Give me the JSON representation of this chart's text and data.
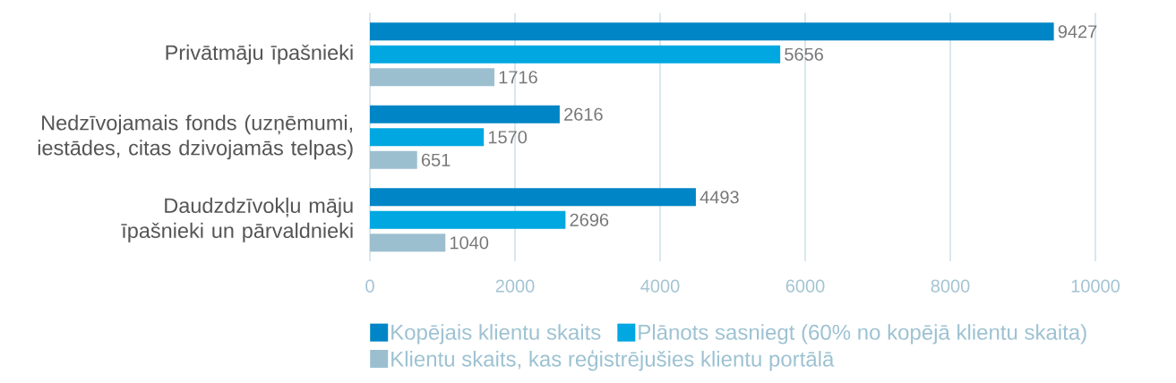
{
  "chart_data": {
    "type": "bar",
    "orientation": "horizontal",
    "categories": [
      "Privātmāju īpašnieki",
      "Nedzīvojamais fonds (uzņēmumi, iestādes, citas dzivojamās telpas)",
      "Daudzdzīvokļu māju īpašnieki un pārvaldnieki"
    ],
    "series": [
      {
        "name": "Kopējais klientu skaits",
        "color": "#0085c6",
        "values": [
          9427,
          2616,
          4493
        ]
      },
      {
        "name": "Plānots sasniegt (60% no kopējā klientu skaita)",
        "color": "#00a7e0",
        "values": [
          5656,
          1570,
          2696
        ]
      },
      {
        "name": "Klientu skaits, kas reģistrējušies klientu portālā",
        "color": "#9bbfcf",
        "values": [
          1716,
          651,
          1040
        ]
      }
    ],
    "xlim": [
      0,
      10000
    ],
    "xticks": [
      0,
      2000,
      4000,
      6000,
      8000,
      10000
    ],
    "grid": "x",
    "legend": "bottom",
    "data_labels": true
  }
}
